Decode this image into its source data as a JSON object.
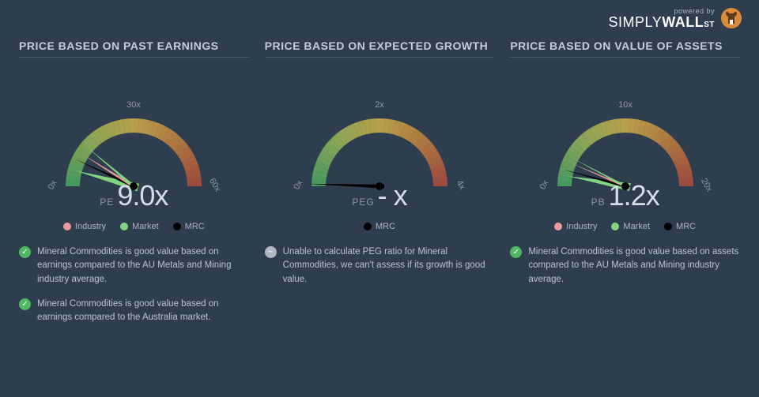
{
  "logo": {
    "powered": "powered by",
    "brand_light": "SIMPLY",
    "brand_bold": "WALL",
    "brand_suffix": "ST"
  },
  "background_color": "#2f3e4f",
  "gauge_gradient": [
    "#4fb863",
    "#a8c85a",
    "#e8c14a",
    "#d98b3a",
    "#c4513a"
  ],
  "legend_colors": {
    "industry": "#e89a9a",
    "market": "#7fd67f",
    "mrc": "#000000"
  },
  "panels": [
    {
      "title": "PRICE BASED ON PAST EARNINGS",
      "metric_name": "PE",
      "metric_value": "9.0x",
      "ticks": [
        "0x",
        "30x",
        "60x"
      ],
      "needles": [
        {
          "color": "#7fd67f",
          "angle": -165,
          "width": 10,
          "len": 76
        },
        {
          "color": "#000000",
          "angle": -155,
          "width": 4,
          "len": 82
        },
        {
          "color": "#e89a9a",
          "angle": -148,
          "width": 4,
          "len": 78
        },
        {
          "color": "#7fd67f",
          "angle": -140,
          "width": 4,
          "len": 78
        }
      ],
      "legend": [
        {
          "label": "Industry",
          "color": "#e89a9a"
        },
        {
          "label": "Market",
          "color": "#7fd67f"
        },
        {
          "label": "MRC",
          "color": "#000000"
        }
      ],
      "notes": [
        {
          "type": "success",
          "text": "Mineral Commodities is good value based on earnings compared to the AU Metals and Mining industry average."
        },
        {
          "type": "success",
          "text": "Mineral Commodities is good value based on earnings compared to the Australia market."
        }
      ]
    },
    {
      "title": "PRICE BASED ON EXPECTED GROWTH",
      "metric_name": "PEG",
      "metric_value": "- x",
      "ticks": [
        "0x",
        "2x",
        "4x"
      ],
      "needles": [
        {
          "color": "#000000",
          "angle": -178,
          "width": 5,
          "len": 90
        }
      ],
      "legend": [
        {
          "label": "MRC",
          "color": "#000000"
        }
      ],
      "notes": [
        {
          "type": "neutral",
          "text": "Unable to calculate PEG ratio for Mineral Commodities, we can't assess if its growth is good value."
        }
      ]
    },
    {
      "title": "PRICE BASED ON VALUE OF ASSETS",
      "metric_name": "PB",
      "metric_value": "1.2x",
      "ticks": [
        "0x",
        "10x",
        "20x"
      ],
      "needles": [
        {
          "color": "#7fd67f",
          "angle": -170,
          "width": 10,
          "len": 74
        },
        {
          "color": "#000000",
          "angle": -165,
          "width": 4,
          "len": 82
        },
        {
          "color": "#e89a9a",
          "angle": -157,
          "width": 3,
          "len": 76
        },
        {
          "color": "#7fd67f",
          "angle": -152,
          "width": 3,
          "len": 76
        }
      ],
      "legend": [
        {
          "label": "Industry",
          "color": "#e89a9a"
        },
        {
          "label": "Market",
          "color": "#7fd67f"
        },
        {
          "label": "MRC",
          "color": "#000000"
        }
      ],
      "notes": [
        {
          "type": "success",
          "text": "Mineral Commodities is good value based on assets compared to the AU Metals and Mining industry average."
        }
      ]
    }
  ]
}
